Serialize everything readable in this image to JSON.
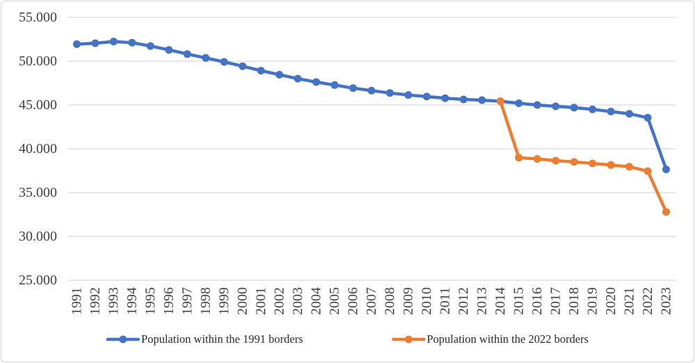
{
  "chart_data": {
    "type": "line",
    "title": "",
    "categories": [
      1991,
      1992,
      1993,
      1994,
      1995,
      1996,
      1997,
      1998,
      1999,
      2000,
      2001,
      2002,
      2003,
      2004,
      2005,
      2006,
      2007,
      2008,
      2009,
      2010,
      2011,
      2012,
      2013,
      2014,
      2015,
      2016,
      2017,
      2018,
      2019,
      2020,
      2021,
      2022,
      2023
    ],
    "series": [
      {
        "name": "Population within the 1991 borders",
        "color": "#4472C4",
        "values": [
          51944,
          52057,
          52244,
          52114,
          51728,
          51297,
          50818,
          50371,
          49918,
          49430,
          48923,
          48457,
          48004,
          47622,
          47281,
          46930,
          46646,
          46373,
          46144,
          45963,
          45779,
          45634,
          45553,
          45426,
          45200,
          45000,
          44850,
          44700,
          44500,
          44250,
          44000,
          43550,
          37650
        ]
      },
      {
        "name": "Population within the 2022 borders",
        "color": "#ED7D31",
        "values": [
          null,
          null,
          null,
          null,
          null,
          null,
          null,
          null,
          null,
          null,
          null,
          null,
          null,
          null,
          null,
          null,
          null,
          null,
          null,
          null,
          null,
          null,
          null,
          45426,
          38990,
          38850,
          38650,
          38500,
          38330,
          38150,
          37950,
          37450,
          32800
        ]
      }
    ],
    "ylim": [
      25000,
      55000
    ],
    "ytick_step": 5000,
    "ytick_labels": [
      "55.000",
      "50.000",
      "45.000",
      "40.000",
      "35.000",
      "30.000",
      "25.000"
    ],
    "grid": "horizontal",
    "legend_position": "bottom",
    "axis_text_color": "#404040",
    "gridline_color": "#D9D9D9"
  }
}
